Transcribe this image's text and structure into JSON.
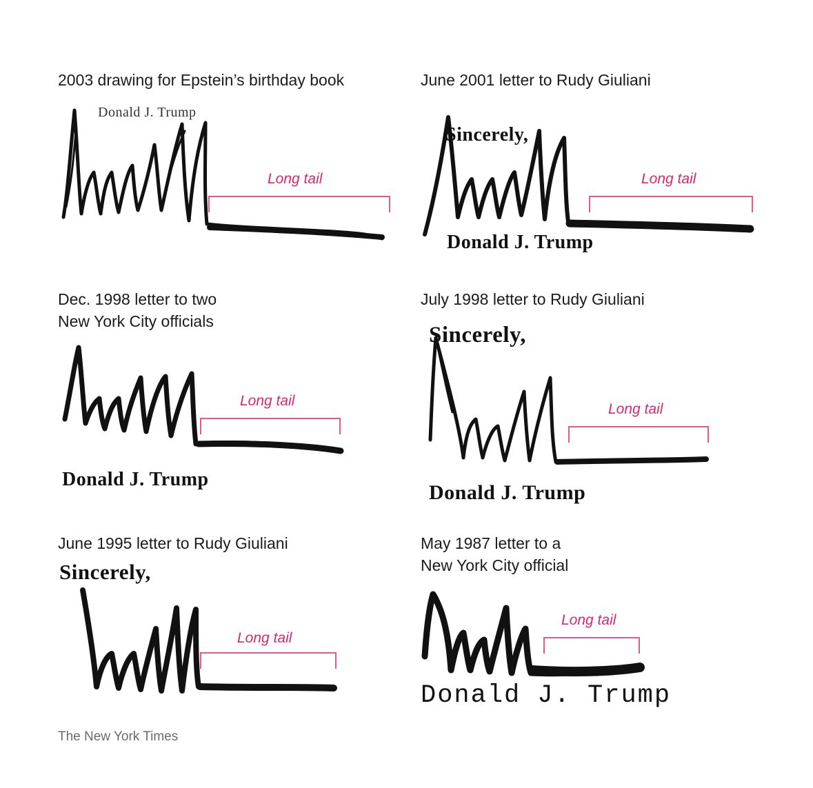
{
  "accent_color": "#d6286f",
  "ink_color": "#111111",
  "panels": [
    {
      "caption": "2003 drawing for Epstein’s birthday book",
      "typed_name": "Donald J. Trump",
      "tail_label": "Long tail",
      "signature_icon": "signature-scrawl"
    },
    {
      "caption": "June 2001 letter to Rudy Giuliani",
      "closing": "Sincerely,",
      "typed_name": "Donald J. Trump",
      "tail_label": "Long tail",
      "signature_icon": "signature-scrawl"
    },
    {
      "caption_line1": "Dec. 1998 letter to two",
      "caption_line2": "New York City officials",
      "typed_name": "Donald J. Trump",
      "tail_label": "Long tail",
      "signature_icon": "signature-scrawl"
    },
    {
      "caption": "July 1998 letter to Rudy Giuliani",
      "closing": "Sincerely,",
      "typed_name": "Donald J. Trump",
      "tail_label": "Long tail",
      "signature_icon": "signature-scrawl"
    },
    {
      "caption": "June 1995 letter to Rudy Giuliani",
      "closing": "Sincerely,",
      "tail_label": "Long tail",
      "signature_icon": "signature-scrawl"
    },
    {
      "caption_line1": "May 1987 letter to a",
      "caption_line2": "New York City official",
      "typed_name": "Donald J. Trump",
      "tail_label": "Long tail",
      "signature_icon": "signature-scrawl"
    }
  ],
  "credit": "The New York Times"
}
